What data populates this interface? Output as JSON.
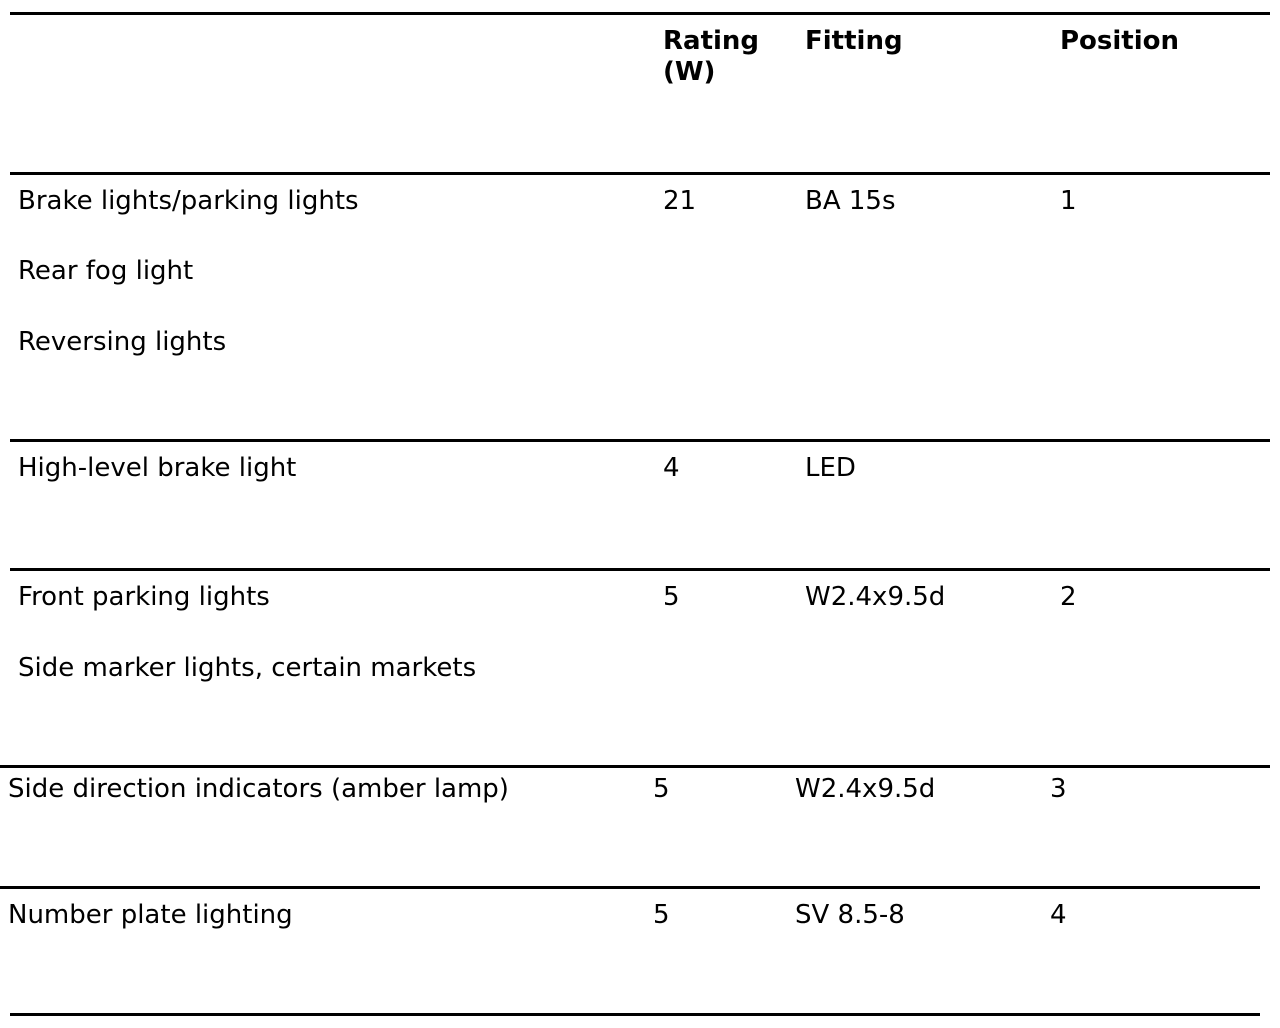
{
  "table": {
    "headers": {
      "rating": "Rating (W)",
      "fitting": "Fitting",
      "position": "Position"
    },
    "rows": [
      {
        "descriptions": [
          "Brake lights/parking lights",
          "Rear fog light",
          "Reversing lights"
        ],
        "rating": "21",
        "fitting": "BA 15s",
        "position": "1"
      },
      {
        "descriptions": [
          "High-level brake light"
        ],
        "rating": "4",
        "fitting": "LED",
        "position": ""
      },
      {
        "descriptions": [
          "Front parking lights",
          "Side marker lights, certain markets"
        ],
        "rating": "5",
        "fitting": "W2.4x9.5d",
        "position": "2"
      },
      {
        "descriptions": [
          "Side direction indicators (amber lamp)"
        ],
        "rating": "5",
        "fitting": "W2.4x9.5d",
        "position": "3"
      },
      {
        "descriptions": [
          "Number plate lighting"
        ],
        "rating": "5",
        "fitting": "SV 8.5-8",
        "position": "4"
      }
    ]
  }
}
